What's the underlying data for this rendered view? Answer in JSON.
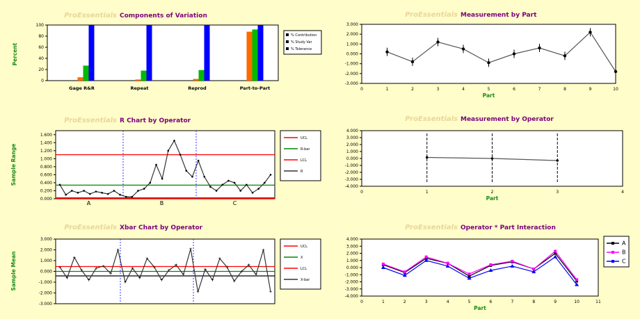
{
  "watermark": "ProEssentials",
  "chart_data": [
    {
      "id": "components",
      "type": "bar",
      "title": "Components of Variation",
      "ylabel": "Percent",
      "ylim": [
        0,
        100
      ],
      "categories": [
        "Gage R&R",
        "Repeat",
        "Reprod",
        "Part-to-Part"
      ],
      "series": [
        {
          "name": "% Contribution",
          "color": "#ff6a00",
          "values": [
            6,
            2,
            3,
            88
          ]
        },
        {
          "name": "% Study Var",
          "color": "#00bb00",
          "values": [
            27,
            18,
            19,
            92
          ]
        },
        {
          "name": "% Tolerance",
          "color": "#0000ff",
          "values": [
            100,
            100,
            100,
            100
          ]
        }
      ],
      "legend_position": "right"
    },
    {
      "id": "by-part",
      "type": "line",
      "title": "Measurement by Part",
      "xlabel": "Part",
      "xlim": [
        0,
        10
      ],
      "ylim": [
        -3,
        3
      ],
      "x": [
        1,
        2,
        3,
        4,
        5,
        6,
        7,
        8,
        9,
        10
      ],
      "values": [
        0.2,
        -0.8,
        1.2,
        0.5,
        -0.9,
        0.0,
        0.6,
        -0.2,
        2.2,
        -1.8
      ],
      "color": "#555555"
    },
    {
      "id": "r-chart",
      "type": "line",
      "title": "R Chart by Operator",
      "ylabel": "Sample Range",
      "ylim": [
        0,
        1.7
      ],
      "operators": [
        "A",
        "B",
        "C"
      ],
      "limits": {
        "ucl": 1.1,
        "rbar": 0.34,
        "lcl": 0.0
      },
      "values": [
        0.35,
        0.1,
        0.2,
        0.15,
        0.2,
        0.12,
        0.18,
        0.15,
        0.12,
        0.2,
        0.1,
        0.05,
        0.05,
        0.2,
        0.25,
        0.4,
        0.85,
        0.5,
        1.2,
        1.45,
        1.1,
        0.7,
        0.55,
        0.95,
        0.55,
        0.3,
        0.2,
        0.35,
        0.45,
        0.4,
        0.2,
        0.35,
        0.15,
        0.25,
        0.4,
        0.6
      ],
      "legend": [
        "UCL",
        "R-bar",
        "LCL",
        "R"
      ]
    },
    {
      "id": "by-operator",
      "type": "line",
      "title": "Measurement by Operator",
      "xlabel": "Part",
      "xlim": [
        0,
        4
      ],
      "ylim": [
        -4,
        4
      ],
      "x": [
        1,
        2,
        3
      ],
      "values": [
        0.15,
        0.0,
        -0.3
      ]
    },
    {
      "id": "xbar-chart",
      "type": "line",
      "title": "Xbar Chart by Operator",
      "ylabel": "Sample Mean",
      "ylim": [
        -3,
        3
      ],
      "limits": {
        "ucl": 0.45,
        "xbar": 0.0,
        "lcl": -0.42
      },
      "values": [
        0.4,
        -0.6,
        1.3,
        0.1,
        -0.8,
        0.3,
        0.5,
        -0.2,
        2.0,
        -1.0,
        0.3,
        -0.6,
        1.2,
        0.4,
        -0.8,
        0.1,
        0.6,
        -0.3,
        2.1,
        -1.9,
        0.2,
        -0.8,
        1.2,
        0.4,
        -0.9,
        0.0,
        0.6,
        -0.3,
        2.0,
        -1.9
      ],
      "legend": [
        "UCL",
        "X",
        "LCL",
        "X-bar"
      ]
    },
    {
      "id": "interaction",
      "type": "line",
      "title": "Operator * Part Interaction",
      "xlabel": "Part",
      "xlim": [
        0,
        11
      ],
      "ylim": [
        -4,
        4
      ],
      "x": [
        1,
        2,
        3,
        4,
        5,
        6,
        7,
        8,
        9,
        10
      ],
      "series": [
        {
          "name": "A",
          "color": "#000000",
          "values": [
            0.4,
            -0.7,
            1.3,
            0.6,
            -1.2,
            0.3,
            0.8,
            -0.2,
            2.0,
            -1.9
          ]
        },
        {
          "name": "B",
          "color": "#ff00ff",
          "values": [
            0.5,
            -0.6,
            1.5,
            0.6,
            -0.9,
            0.4,
            0.9,
            -0.2,
            2.3,
            -1.7
          ]
        },
        {
          "name": "C",
          "color": "#0000ff",
          "values": [
            0.0,
            -1.1,
            1.0,
            0.2,
            -1.5,
            -0.4,
            0.2,
            -0.6,
            1.5,
            -2.4
          ]
        }
      ]
    }
  ]
}
